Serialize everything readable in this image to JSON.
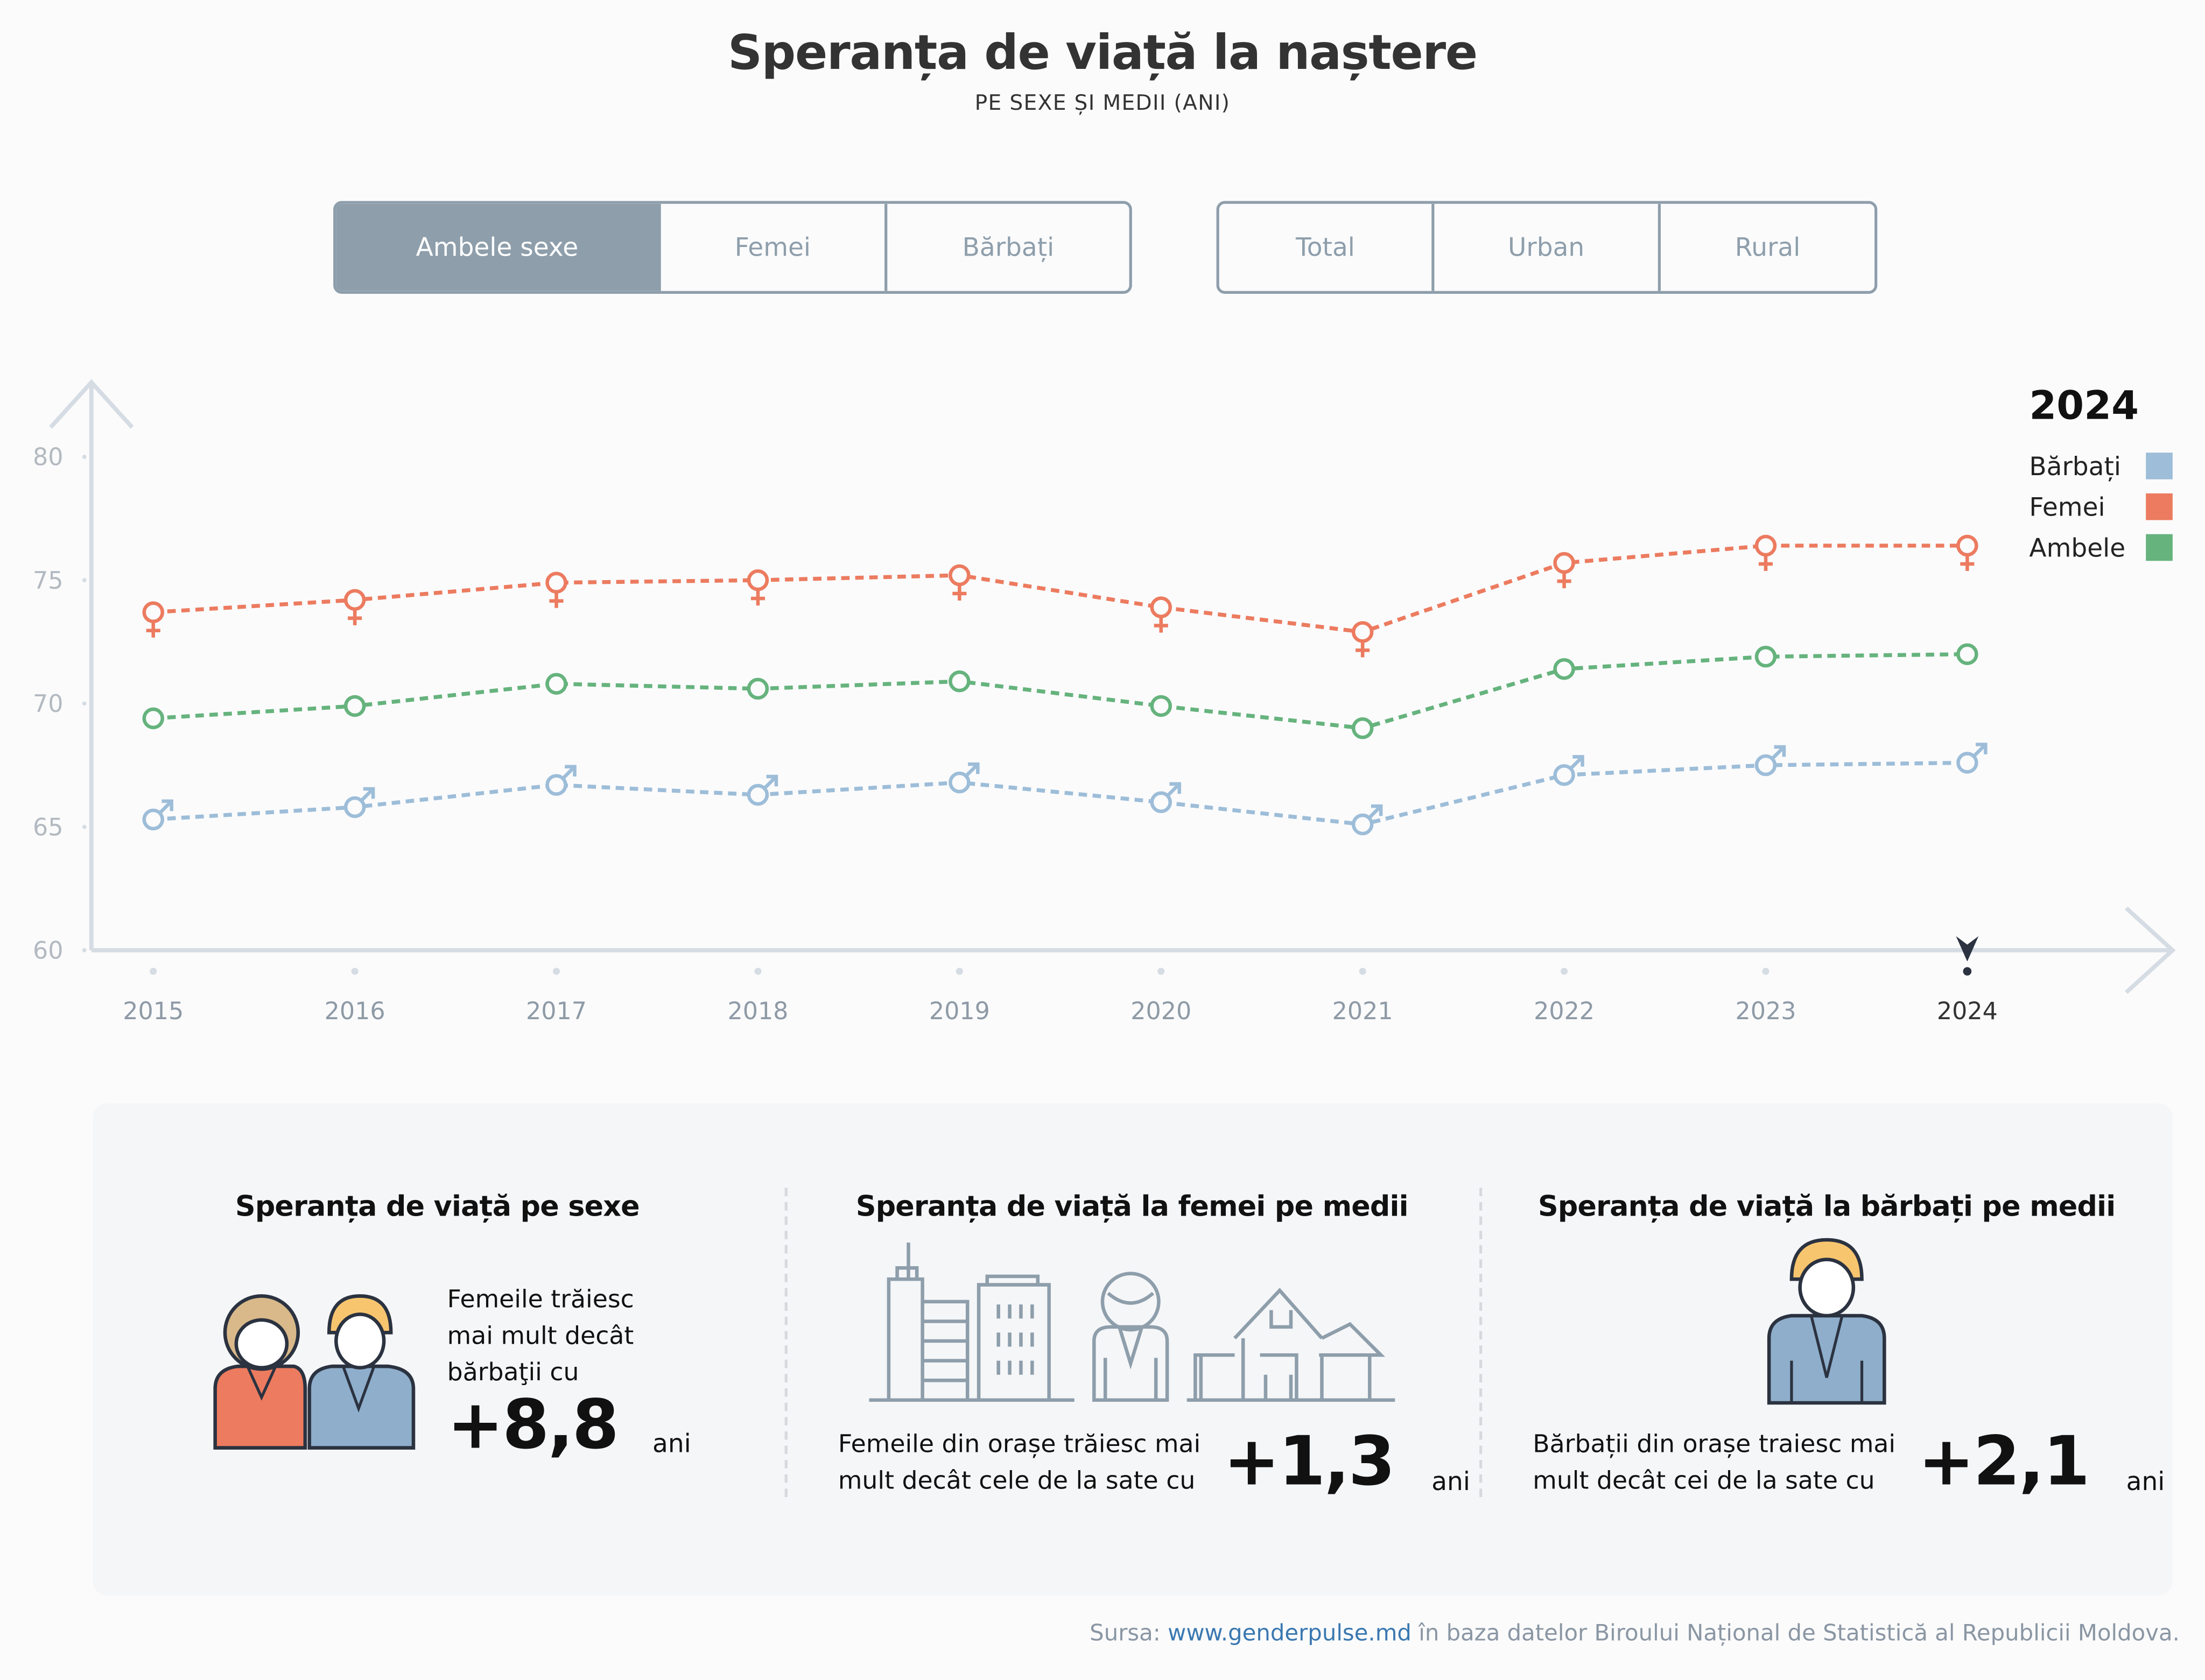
{
  "header": {
    "title": "Speranța de viață la naștere",
    "subtitle": "PE SEXE ȘI MEDII (ANI)"
  },
  "filters": {
    "sex": [
      {
        "label": "Ambele sexe",
        "active": true
      },
      {
        "label": "Femei",
        "active": false
      },
      {
        "label": "Bărbați",
        "active": false
      }
    ],
    "area": [
      {
        "label": "Total",
        "active": false
      },
      {
        "label": "Urban",
        "active": false
      },
      {
        "label": "Rural",
        "active": false
      }
    ]
  },
  "chart_data": {
    "type": "line",
    "x": [
      2015,
      2016,
      2017,
      2018,
      2019,
      2020,
      2021,
      2022,
      2023,
      2024
    ],
    "x_tick_labels": [
      "2015",
      "2016",
      "2017",
      "2018",
      "2019",
      "2020",
      "2021",
      "2022",
      "2023",
      "2024"
    ],
    "selected_x": "2024",
    "ylim": [
      60,
      80
    ],
    "y_ticks": [
      "60",
      "65",
      "70",
      "75",
      "80"
    ],
    "grid": false,
    "legend_title": "2024",
    "legend_placement": "top-right",
    "series": [
      {
        "name": "Bărbați",
        "color": "#9dbdd8",
        "marker": "male",
        "values": [
          65.3,
          65.8,
          66.7,
          66.3,
          66.8,
          66.0,
          65.1,
          67.1,
          67.5,
          67.6
        ]
      },
      {
        "name": "Femei",
        "color": "#ec7b5f",
        "marker": "female",
        "values": [
          73.7,
          74.2,
          74.9,
          75.0,
          75.2,
          73.9,
          72.9,
          75.7,
          76.4,
          76.4
        ]
      },
      {
        "name": "Ambele",
        "color": "#66b37d",
        "marker": "circle",
        "values": [
          69.4,
          69.9,
          70.8,
          70.6,
          70.9,
          69.9,
          69.0,
          71.4,
          71.9,
          72.0
        ]
      }
    ]
  },
  "panels": [
    {
      "title": "Speranța de viață pe sexe",
      "text_lines": [
        "Femeile trăiesc",
        "mai mult decât",
        "bărbaţii cu"
      ],
      "value": "+8,8",
      "unit": "ani"
    },
    {
      "title": "Speranța de viață la femei pe medii",
      "text_lines": [
        "Femeile din orașe trăiesc mai",
        "mult decât cele de la sate cu"
      ],
      "value": "+1,3",
      "unit": "ani"
    },
    {
      "title": "Speranța de viață la bărbați pe medii",
      "text_lines": [
        "Bărbații din orașe traiesc mai",
        "mult decât cei de la sate cu"
      ],
      "value": "+2,1",
      "unit": "ani"
    }
  ],
  "footer": {
    "prefix": "Sursa: ",
    "link": "www.genderpulse.md",
    "suffix": " în baza datelor Biroului Național de Statistică al Republicii Moldova."
  },
  "colors": {
    "filter": "#8e9eab",
    "axis": "#d5dce3"
  }
}
